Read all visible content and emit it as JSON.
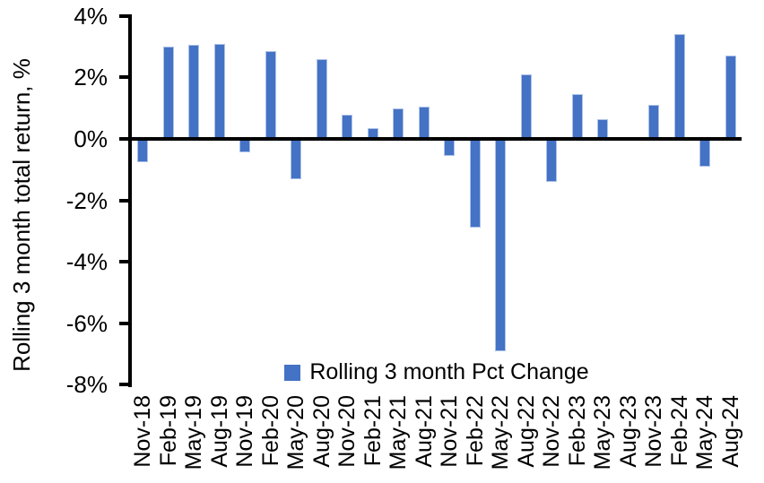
{
  "chart_data": {
    "type": "bar",
    "title": "",
    "xlabel": "",
    "ylabel": "Rolling 3 month total return, %",
    "ylim": [
      -8,
      4
    ],
    "ytick_values": [
      4,
      2,
      0,
      -2,
      -4,
      -6,
      -8
    ],
    "ytick_labels": [
      "4%",
      "2%",
      "0%",
      "-2%",
      "-4%",
      "-6%",
      "-8%"
    ],
    "grid": false,
    "legend_position": "bottom-center-inside",
    "categories": [
      "Nov-18",
      "Feb-19",
      "May-19",
      "Aug-19",
      "Nov-19",
      "Feb-20",
      "May-20",
      "Aug-20",
      "Nov-20",
      "Feb-21",
      "May-21",
      "Aug-21",
      "Nov-21",
      "Feb-22",
      "May-22",
      "Aug-22",
      "Nov-22",
      "Feb-23",
      "May-23",
      "Aug-23",
      "Nov-23",
      "Feb-24",
      "May-24",
      "Aug-24"
    ],
    "series": [
      {
        "name": "Rolling 3 month Pct Change",
        "values": [
          -0.75,
          3.0,
          3.05,
          3.1,
          -0.45,
          2.85,
          -1.3,
          2.6,
          0.8,
          0.35,
          1.0,
          1.05,
          -0.55,
          -2.9,
          -6.9,
          2.1,
          -1.4,
          1.45,
          0.65,
          0.0,
          1.1,
          3.4,
          -0.9,
          2.7
        ]
      }
    ],
    "colors": {
      "bar": "#4472C4",
      "bar_edge": "#AEC2E8",
      "axis": "#000000",
      "text": "#000000",
      "background": "#FFFFFF"
    }
  }
}
